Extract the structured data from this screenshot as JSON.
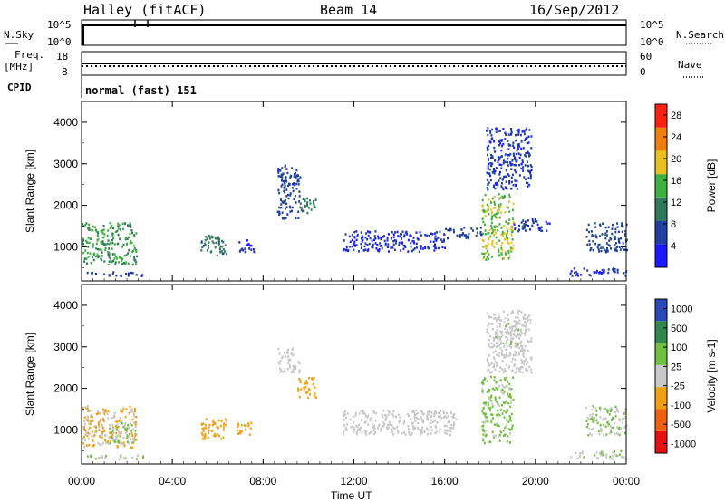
{
  "header": {
    "station": "Halley (fitACF)",
    "beam": "Beam 14",
    "date": "16/Sep/2012"
  },
  "strip_labels": {
    "nsky": "N.Sky",
    "nsky_top": "10^5",
    "nsky_bottom": "10^0",
    "nsearch": "N.Search",
    "nsearch_top": "10^5",
    "nsearch_bottom": "10^0",
    "freq_line1": "Freq.",
    "freq_line2": "[MHz]",
    "freq_top": "18",
    "freq_bottom": "8",
    "nave": "Nave",
    "nave_top": "60",
    "nave_bottom": "0",
    "cpid": "CPID",
    "cpid_value": "normal (fast) 151"
  },
  "colors": {
    "power": [
      "#1a1aff",
      "#2040a0",
      "#2f7a5c",
      "#40b040",
      "#e8c020",
      "#f07f10",
      "#ff2010"
    ],
    "velocity": [
      "#e81010",
      "#f06010",
      "#f0a010",
      "#c8c8c8",
      "#70c040",
      "#30884c",
      "#2a4ab8"
    ]
  },
  "chart_data": [
    {
      "type": "heatmap",
      "name": "power",
      "ylabel": "Slant Range [km]",
      "xlabel": "",
      "x_ticks": [
        "00:00",
        "04:00",
        "08:00",
        "12:00",
        "16:00",
        "20:00",
        "00:00"
      ],
      "xlim_hours": [
        0,
        24
      ],
      "y_ticks": [
        "1000",
        "2000",
        "3000",
        "4000"
      ],
      "ylim": [
        180,
        4500
      ],
      "colorbar": {
        "label": "Power [dB]",
        "ticks": [
          "4",
          "8",
          "12",
          "16",
          "20",
          "24",
          "28"
        ],
        "range": [
          0,
          30
        ]
      },
      "regions": [
        {
          "t0": 0.0,
          "t1": 2.4,
          "r0": 600,
          "r1": 1600,
          "value": 13
        },
        {
          "t0": 0.0,
          "t1": 2.7,
          "r0": 320,
          "r1": 420,
          "value": 5
        },
        {
          "t0": 5.2,
          "t1": 6.4,
          "r0": 800,
          "r1": 1300,
          "value": 10
        },
        {
          "t0": 6.8,
          "t1": 7.6,
          "r0": 900,
          "r1": 1200,
          "value": 4
        },
        {
          "t0": 8.6,
          "t1": 9.6,
          "r0": 1700,
          "r1": 3000,
          "value": 6
        },
        {
          "t0": 9.5,
          "t1": 10.3,
          "r0": 1800,
          "r1": 2200,
          "value": 10
        },
        {
          "t0": 11.5,
          "t1": 16.0,
          "r0": 900,
          "r1": 1400,
          "value": 4
        },
        {
          "t0": 16.0,
          "t1": 17.6,
          "r0": 1200,
          "r1": 1500,
          "value": 6
        },
        {
          "t0": 17.6,
          "t1": 19.0,
          "r0": 700,
          "r1": 2300,
          "value": 17
        },
        {
          "t0": 17.8,
          "t1": 19.8,
          "r0": 2400,
          "r1": 3900,
          "value": 5
        },
        {
          "t0": 19.0,
          "t1": 20.6,
          "r0": 1400,
          "r1": 1700,
          "value": 5
        },
        {
          "t0": 21.5,
          "t1": 24.0,
          "r0": 320,
          "r1": 520,
          "value": 5
        },
        {
          "t0": 22.2,
          "t1": 24.0,
          "r0": 900,
          "r1": 1600,
          "value": 7
        }
      ]
    },
    {
      "type": "heatmap",
      "name": "velocity",
      "ylabel": "Slant Range [km]",
      "xlabel": "Time UT",
      "x_ticks": [
        "00:00",
        "04:00",
        "08:00",
        "12:00",
        "16:00",
        "20:00",
        "00:00"
      ],
      "xlim_hours": [
        0,
        24
      ],
      "y_ticks": [
        "1000",
        "2000",
        "3000",
        "4000"
      ],
      "ylim": [
        180,
        4500
      ],
      "colorbar": {
        "label": "Velocity [m s-1]",
        "ticks": [
          "1000",
          "500",
          "100",
          "25",
          "-25",
          "-100",
          "-500",
          "-1000"
        ],
        "range": [
          -1200,
          1200
        ]
      },
      "regions": [
        {
          "t0": 0.0,
          "t1": 2.4,
          "r0": 600,
          "r1": 1600,
          "value": -150
        },
        {
          "t0": 1.2,
          "t1": 2.4,
          "r0": 700,
          "r1": 1200,
          "value": 200
        },
        {
          "t0": 0.0,
          "t1": 2.7,
          "r0": 320,
          "r1": 420,
          "value": 120
        },
        {
          "t0": 5.2,
          "t1": 6.4,
          "r0": 800,
          "r1": 1300,
          "value": -350
        },
        {
          "t0": 6.8,
          "t1": 7.6,
          "r0": 900,
          "r1": 1200,
          "value": -300
        },
        {
          "t0": 8.6,
          "t1": 9.6,
          "r0": 2400,
          "r1": 3000,
          "value": 0
        },
        {
          "t0": 9.5,
          "t1": 10.3,
          "r0": 1800,
          "r1": 2300,
          "value": -350
        },
        {
          "t0": 11.5,
          "t1": 16.5,
          "r0": 900,
          "r1": 1500,
          "value": 0
        },
        {
          "t0": 17.6,
          "t1": 19.0,
          "r0": 700,
          "r1": 2300,
          "value": 250
        },
        {
          "t0": 17.8,
          "t1": 19.8,
          "r0": 2400,
          "r1": 3900,
          "value": 0
        },
        {
          "t0": 18.2,
          "t1": 19.4,
          "r0": 3000,
          "r1": 3600,
          "value": 80
        },
        {
          "t0": 21.5,
          "t1": 24.0,
          "r0": 320,
          "r1": 520,
          "value": 80
        },
        {
          "t0": 22.2,
          "t1": 24.0,
          "r0": 900,
          "r1": 1600,
          "value": 150
        }
      ]
    }
  ]
}
